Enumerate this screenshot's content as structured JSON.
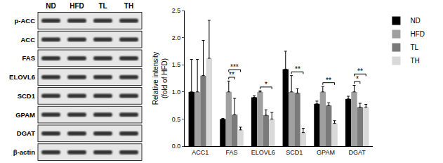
{
  "chart_data": {
    "type": "bar",
    "categories": [
      "ACC1",
      "FAS",
      "ELOVL6",
      "SCD1",
      "GPAM",
      "DGAT"
    ],
    "series": [
      {
        "name": "ND",
        "color": "#000000",
        "values": [
          1.0,
          0.5,
          0.9,
          1.42,
          0.78,
          0.87
        ],
        "errors": [
          0.6,
          0.01,
          0.03,
          0.33,
          0.05,
          0.05
        ]
      },
      {
        "name": "HFD",
        "color": "#a0a0a0",
        "values": [
          1.0,
          1.0,
          1.0,
          1.0,
          1.0,
          1.0
        ],
        "errors": [
          0.6,
          0.2,
          0.02,
          0.3,
          0.1,
          0.12
        ]
      },
      {
        "name": "TL",
        "color": "#7a7a7a",
        "values": [
          1.3,
          0.58,
          0.57,
          0.98,
          0.75,
          0.72
        ],
        "errors": [
          0.65,
          0.3,
          0.1,
          0.08,
          0.05,
          0.07
        ]
      },
      {
        "name": "TH",
        "color": "#d9d9d9",
        "values": [
          1.62,
          0.3,
          0.5,
          0.25,
          0.42,
          0.72
        ],
        "errors": [
          0.7,
          0.05,
          0.12,
          0.08,
          0.05,
          0.05
        ]
      }
    ],
    "ylabel": [
      "Relative intensity",
      "(fold of HFD)"
    ],
    "ylim": [
      0,
      2.5
    ],
    "yticks": [
      {
        "value": 0,
        "label": "0.0"
      },
      {
        "value": 0.5,
        "label": "0.5"
      },
      {
        "value": 1,
        "label": "1.0"
      },
      {
        "value": 1.5,
        "label": "1.5"
      },
      {
        "value": 2,
        "label": "2.0"
      },
      {
        "value": 2.5,
        "label": "2.5"
      }
    ],
    "grid": false,
    "legend": "right",
    "significance": [
      {
        "category": "FAS",
        "from": "HFD",
        "to": "TL",
        "label": "**"
      },
      {
        "category": "FAS",
        "from": "HFD",
        "to": "TH",
        "label": "***"
      },
      {
        "category": "ELOVL6",
        "from": "HFD",
        "to": "TH",
        "label": "*"
      },
      {
        "category": "SCD1",
        "from": "HFD",
        "to": "TH",
        "label": "**"
      },
      {
        "category": "GPAM",
        "from": "HFD",
        "to": "TH",
        "label": "**"
      },
      {
        "category": "DGAT",
        "from": "HFD",
        "to": "TL",
        "label": "*"
      },
      {
        "category": "DGAT",
        "from": "HFD",
        "to": "TH",
        "label": "**"
      }
    ]
  },
  "blot": {
    "groups": [
      "ND",
      "HFD",
      "TL",
      "TH"
    ],
    "rows": [
      "p-ACC",
      "ACC",
      "FAS",
      "ELOVL6",
      "SCD1",
      "GPAM",
      "DGAT",
      "β-actin"
    ]
  }
}
